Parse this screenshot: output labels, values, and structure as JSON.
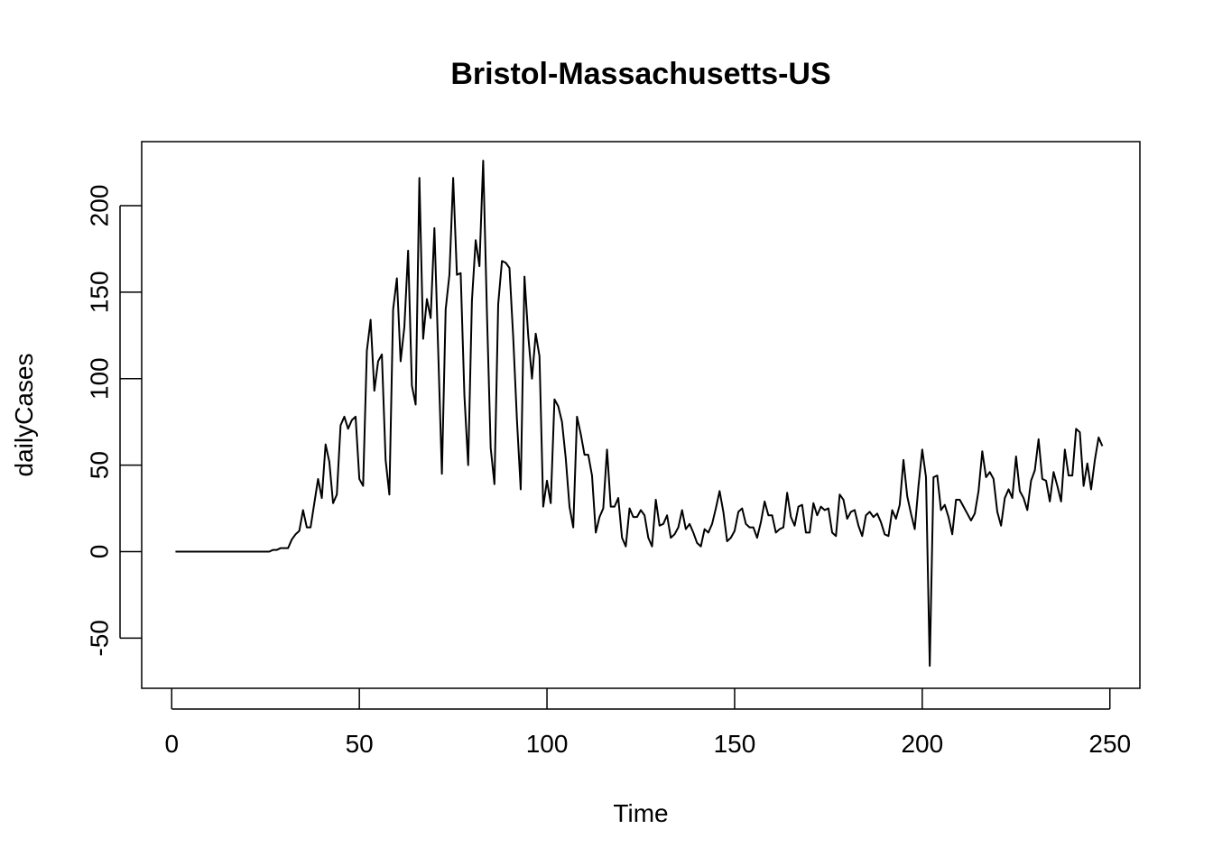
{
  "chart_data": {
    "type": "line",
    "title": "Bristol-Massachusetts-US",
    "xlabel": "Time",
    "ylabel": "dailyCases",
    "xlim": [
      -8,
      258
    ],
    "ylim": [
      -79,
      237
    ],
    "x_ticks": [
      0,
      50,
      100,
      150,
      200,
      250
    ],
    "y_ticks": [
      -50,
      0,
      50,
      100,
      150,
      200
    ],
    "x_tick_labels": [
      "0",
      "50",
      "100",
      "150",
      "200",
      "250"
    ],
    "y_tick_labels": [
      "-50",
      "0",
      "50",
      "100",
      "150",
      "200"
    ],
    "grid": false,
    "legend": "none",
    "line_color": "#000000",
    "series": [
      {
        "x_start": 1,
        "x_step": 1,
        "values": [
          0,
          0,
          0,
          0,
          0,
          0,
          0,
          0,
          0,
          0,
          0,
          0,
          0,
          0,
          0,
          0,
          0,
          0,
          0,
          0,
          0,
          0,
          0,
          0,
          0,
          0,
          1,
          1,
          2,
          2,
          2,
          7,
          10,
          12,
          24,
          14,
          14,
          28,
          42,
          31,
          62,
          52,
          28,
          33,
          73,
          78,
          71,
          76,
          78,
          42,
          38,
          116,
          134,
          93,
          110,
          114,
          53,
          33,
          140,
          158,
          110,
          130,
          174,
          96,
          85,
          216,
          123,
          146,
          135,
          187,
          117,
          45,
          140,
          160,
          216,
          160,
          161,
          90,
          50,
          145,
          180,
          165,
          226,
          138,
          60,
          39,
          143,
          168,
          167,
          164,
          124,
          76,
          36,
          159,
          125,
          100,
          126,
          113,
          26,
          41,
          28,
          88,
          84,
          75,
          54,
          26,
          14,
          78,
          68,
          56,
          56,
          44,
          11,
          20,
          25,
          59,
          26,
          26,
          31,
          8,
          3,
          25,
          20,
          20,
          24,
          21,
          8,
          3,
          30,
          15,
          16,
          21,
          8,
          10,
          14,
          24,
          13,
          16,
          11,
          5,
          3,
          13,
          11,
          16,
          25,
          35,
          23,
          6,
          8,
          12,
          23,
          25,
          16,
          14,
          14,
          8,
          17,
          29,
          21,
          21,
          11,
          13,
          14,
          34,
          20,
          15,
          26,
          27,
          11,
          11,
          28,
          21,
          26,
          24,
          25,
          11,
          9,
          33,
          30,
          19,
          23,
          24,
          15,
          9,
          21,
          23,
          20,
          22,
          17,
          10,
          9,
          24,
          19,
          27,
          53,
          32,
          22,
          13,
          38,
          59,
          43,
          -66,
          43,
          44,
          24,
          27,
          20,
          10,
          30,
          30,
          26,
          22,
          18,
          22,
          35,
          58,
          43,
          46,
          42,
          23,
          15,
          31,
          36,
          31,
          55,
          35,
          31,
          24,
          41,
          47,
          65,
          42,
          41,
          29,
          46,
          38,
          29,
          59,
          44,
          44,
          71,
          69,
          38,
          51,
          36,
          53,
          66,
          61
        ]
      }
    ]
  }
}
